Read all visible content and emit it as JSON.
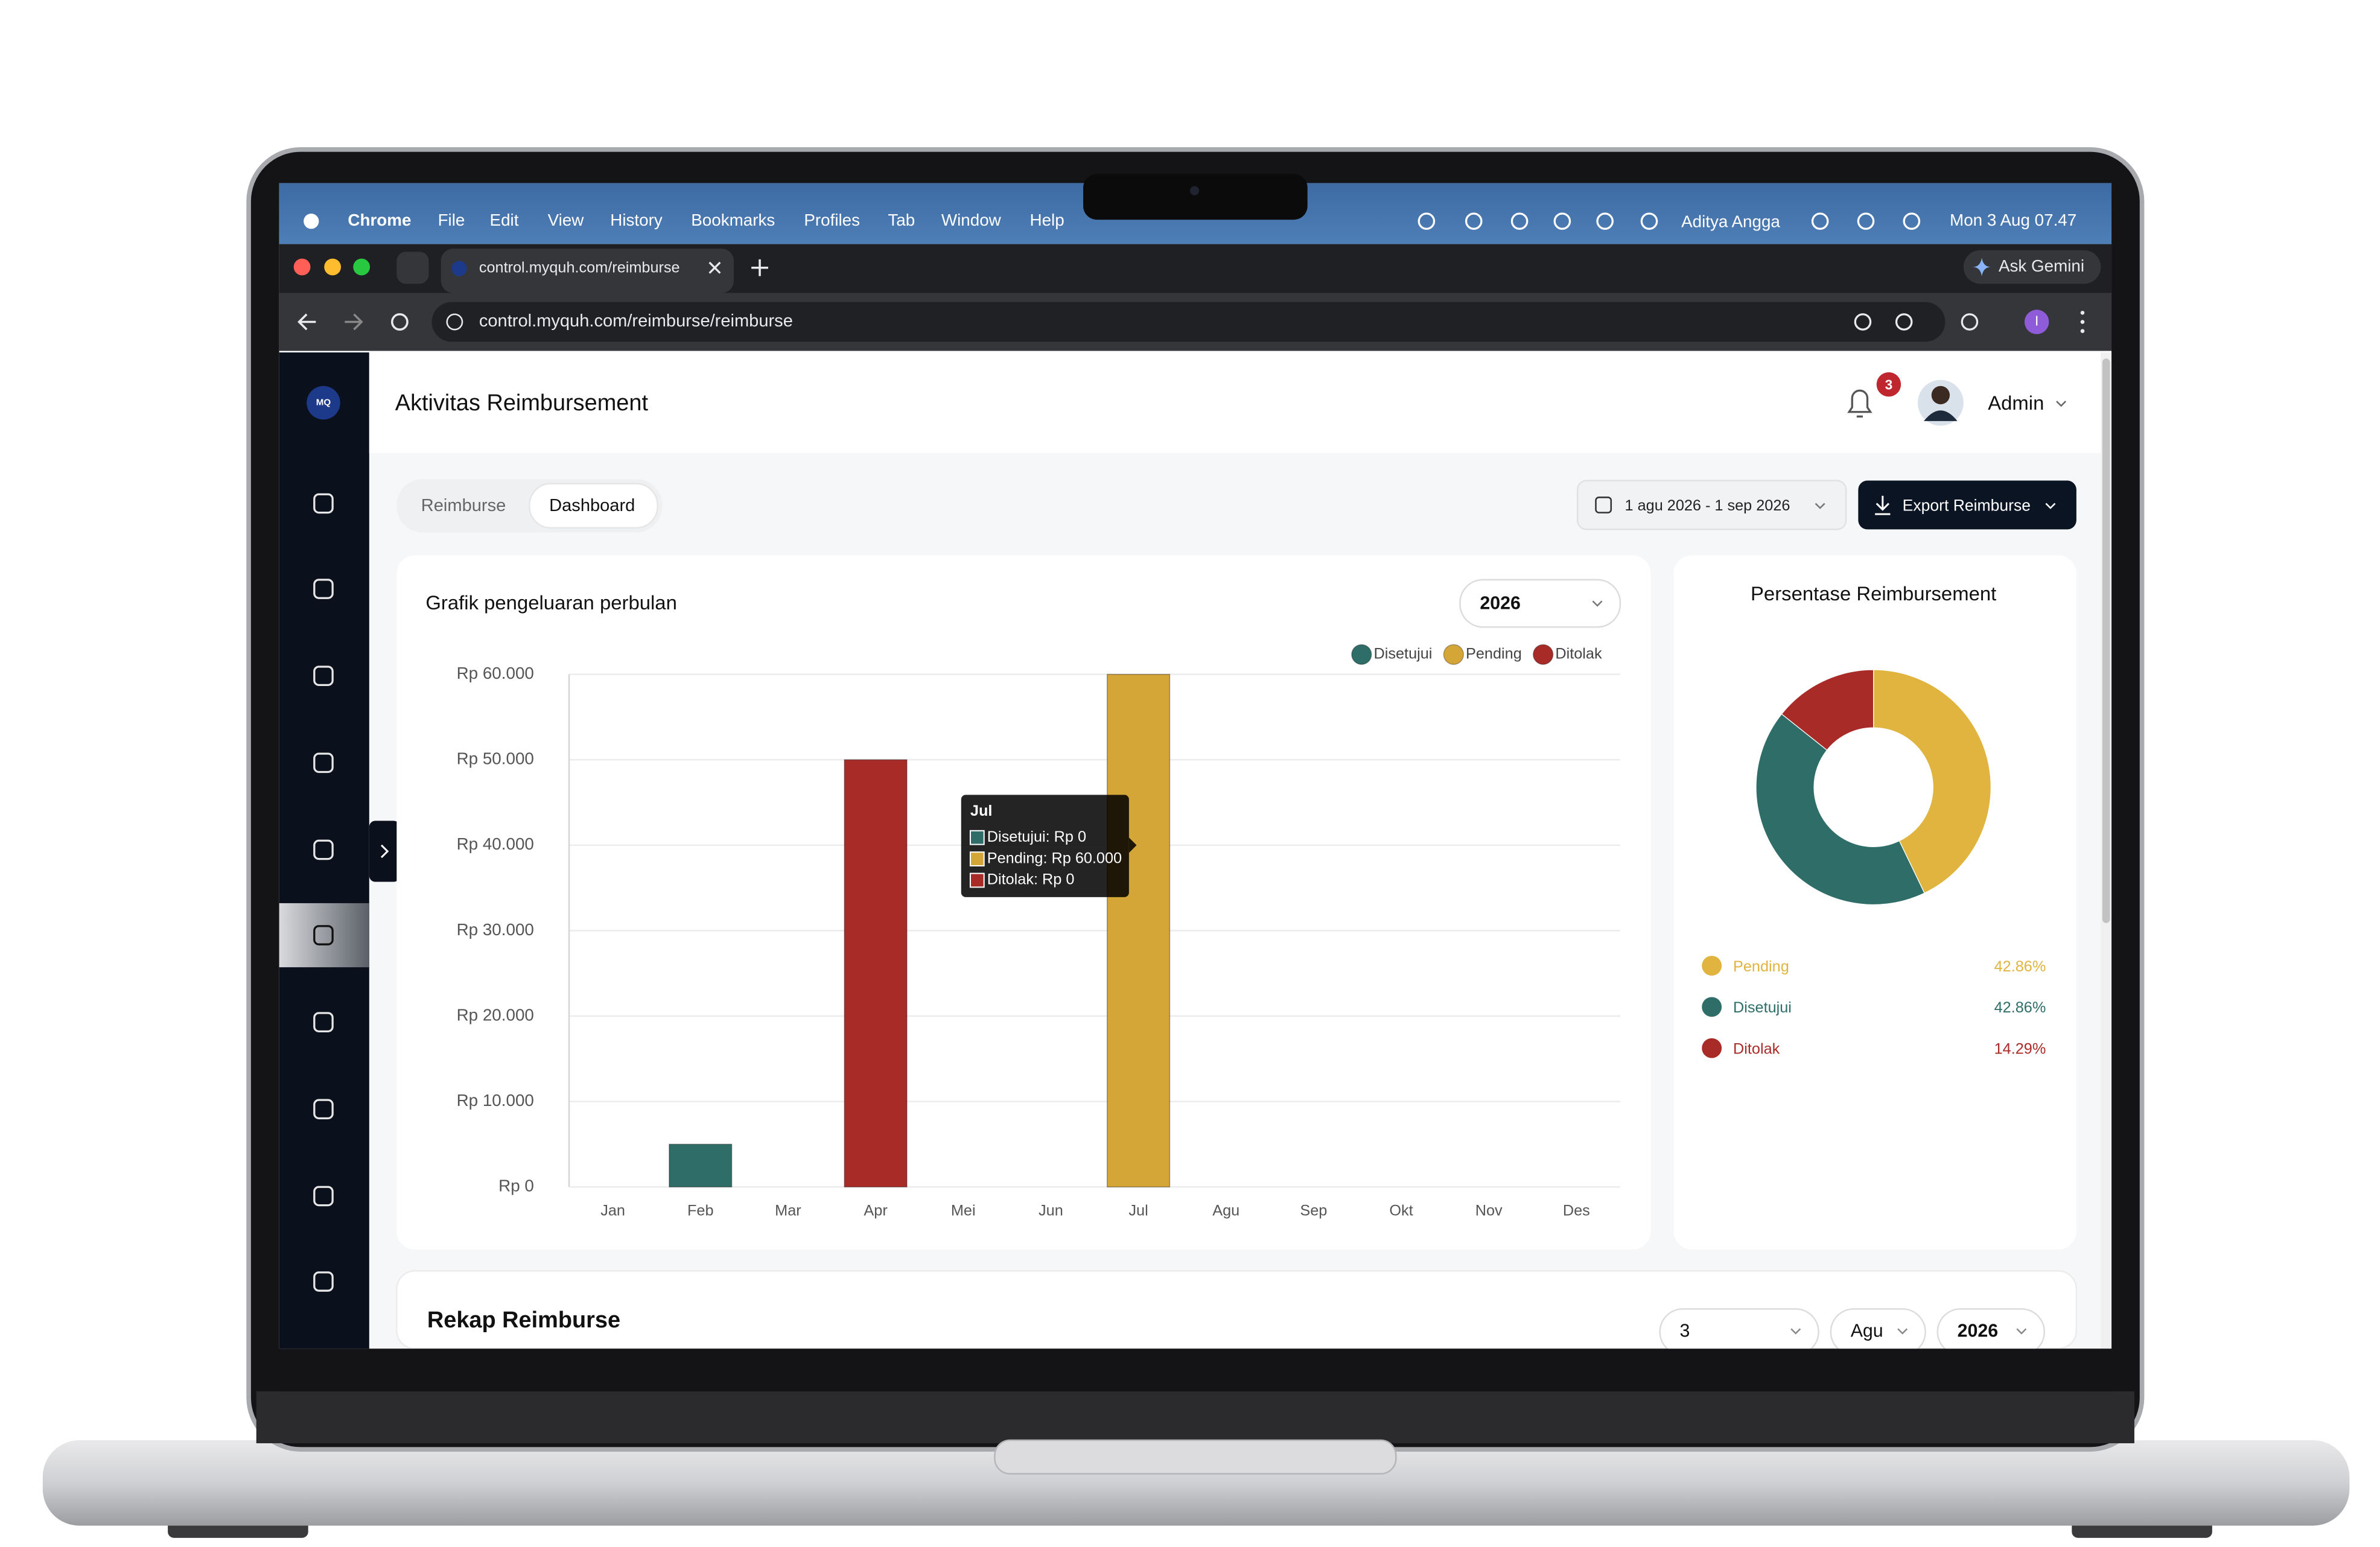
{
  "menubar": {
    "app": "Chrome",
    "menus": [
      "File",
      "Edit",
      "View",
      "History",
      "Bookmarks",
      "Profiles",
      "Tab",
      "Window",
      "Help"
    ],
    "user": "Aditya Angga",
    "clock": "Mon 3 Aug 07.47"
  },
  "browser": {
    "tab_title": "control.myquh.com/reimburse",
    "gemini": "Ask Gemini",
    "url": "control.myquh.com/reimburse/reimburse",
    "profile": "I"
  },
  "app": {
    "logo": "MQ",
    "page_title": "Aktivitas Reimbursement",
    "notifications": "3",
    "user": "Admin",
    "tabs": [
      "Reimburse",
      "Dashboard"
    ],
    "date_range": "1 agu 2026 - 1 sep 2026",
    "export": "Export Reimburse",
    "year_select": "2026",
    "recap": {
      "title": "Rekap Reimburse",
      "filters": [
        "3",
        "Agu",
        "2026"
      ]
    }
  },
  "chart_data": [
    {
      "type": "bar",
      "stacked": true,
      "title": "Grafik pengeluaran perbulan",
      "categories": [
        "Jan",
        "Feb",
        "Mar",
        "Apr",
        "Mei",
        "Jun",
        "Jul",
        "Agu",
        "Sep",
        "Okt",
        "Nov",
        "Des"
      ],
      "series": [
        {
          "name": "Disetujui",
          "color": "#2f6e68",
          "values": [
            0,
            5000,
            0,
            0,
            0,
            0,
            0,
            0,
            0,
            0,
            0,
            0
          ]
        },
        {
          "name": "Pending",
          "color": "#d4a537",
          "values": [
            0,
            0,
            0,
            0,
            0,
            0,
            60000,
            0,
            0,
            0,
            0,
            0
          ]
        },
        {
          "name": "Ditolak",
          "color": "#a92b27",
          "values": [
            0,
            0,
            0,
            50000,
            0,
            0,
            0,
            0,
            0,
            0,
            0,
            0
          ]
        }
      ],
      "ylim": [
        0,
        60000
      ],
      "yticks": [
        {
          "value": 0,
          "label": "Rp 0"
        },
        {
          "value": 10000,
          "label": "Rp 10.000"
        },
        {
          "value": 20000,
          "label": "Rp 20.000"
        },
        {
          "value": 30000,
          "label": "Rp 30.000"
        },
        {
          "value": 40000,
          "label": "Rp 40.000"
        },
        {
          "value": 50000,
          "label": "Rp 50.000"
        },
        {
          "value": 60000,
          "label": "Rp 60.000"
        }
      ],
      "grid": true,
      "legend": "top-right",
      "tooltip": {
        "title": "Jul",
        "lines": [
          "Disetujui: Rp 0",
          "Pending: Rp 60.000",
          "Ditolak: Rp 0"
        ]
      }
    },
    {
      "type": "donut",
      "title": "Persentase Reimbursement",
      "categories": [
        "Pending",
        "Disetujui",
        "Ditolak"
      ],
      "values": [
        42.86,
        42.86,
        14.29
      ],
      "value_labels": [
        "42.86%",
        "42.86%",
        "14.29%"
      ],
      "colors": [
        "#e0b43e",
        "#2f6e68",
        "#a92b27"
      ]
    }
  ]
}
